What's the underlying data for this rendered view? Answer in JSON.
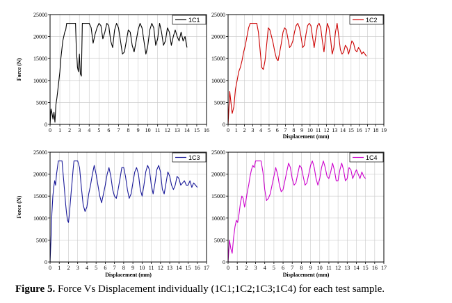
{
  "caption": {
    "label": "Figure 5.",
    "text": "Force Vs Displacement individually (1C1;1C2;1C3;1C4) for each test sample."
  },
  "chart_data": [
    {
      "type": "line",
      "title": "",
      "xlabel": "",
      "ylabel": "Force (N)",
      "xlim": [
        0,
        16
      ],
      "ylim": [
        0,
        25000
      ],
      "xticks": [
        0,
        1,
        2,
        3,
        4,
        5,
        6,
        7,
        8,
        9,
        10,
        11,
        12,
        13,
        14,
        15,
        16
      ],
      "yticks": [
        0,
        5000,
        10000,
        15000,
        20000,
        25000
      ],
      "grid": true,
      "legend": "top-right",
      "series": [
        {
          "name": "1C1",
          "color": "#000000",
          "x": [
            0,
            0.1,
            0.2,
            0.3,
            0.4,
            0.5,
            0.6,
            0.7,
            0.8,
            0.9,
            1.0,
            1.1,
            1.2,
            1.3,
            1.4,
            1.5,
            1.6,
            1.7,
            1.8,
            2.0,
            2.2,
            2.4,
            2.6,
            2.7,
            2.75,
            2.8,
            2.9,
            3.0,
            3.05,
            3.1,
            3.2,
            3.3,
            3.4,
            3.6,
            3.8,
            4.0,
            4.2,
            4.4,
            4.6,
            4.8,
            5.0,
            5.2,
            5.4,
            5.6,
            5.8,
            6.0,
            6.2,
            6.4,
            6.6,
            6.8,
            7.0,
            7.2,
            7.4,
            7.6,
            7.8,
            8.0,
            8.2,
            8.4,
            8.6,
            8.8,
            9.0,
            9.2,
            9.4,
            9.6,
            9.8,
            10.0,
            10.2,
            10.4,
            10.6,
            10.8,
            11.0,
            11.2,
            11.4,
            11.6,
            11.8,
            12.0,
            12.2,
            12.4,
            12.6,
            12.8,
            13.0,
            13.2,
            13.4,
            13.6,
            13.8,
            14.0
          ],
          "y": [
            0,
            3500,
            2500,
            1200,
            2800,
            500,
            4500,
            6000,
            8000,
            10000,
            12000,
            15000,
            17000,
            19000,
            20000,
            21000,
            21500,
            23000,
            23000,
            23000,
            23000,
            23000,
            23000,
            16000,
            15000,
            13000,
            12000,
            16000,
            13500,
            11500,
            11000,
            23000,
            23000,
            23000,
            23000,
            23000,
            22000,
            18500,
            20500,
            22000,
            23000,
            22500,
            19500,
            21000,
            23000,
            22500,
            19000,
            17500,
            21500,
            23000,
            22000,
            19000,
            16000,
            16500,
            19000,
            21500,
            21000,
            18000,
            16500,
            19000,
            21500,
            23000,
            22000,
            19000,
            16000,
            18000,
            21500,
            23000,
            22000,
            18000,
            19500,
            23000,
            21000,
            18000,
            19000,
            22000,
            21000,
            18000,
            20000,
            21500,
            20000,
            19000,
            21000,
            19000,
            20000,
            17500
          ]
        }
      ]
    },
    {
      "type": "line",
      "title": "",
      "xlabel": "Displacement (mm)",
      "ylabel": "",
      "xlim": [
        0,
        19
      ],
      "ylim": [
        0,
        25000
      ],
      "xticks": [
        0,
        1,
        2,
        3,
        4,
        5,
        6,
        7,
        8,
        9,
        10,
        11,
        12,
        13,
        14,
        15,
        16,
        17,
        18,
        19
      ],
      "yticks": [
        0,
        5000,
        10000,
        15000,
        20000,
        25000
      ],
      "grid": true,
      "legend": "top-right",
      "series": [
        {
          "name": "1C2",
          "color": "#cc0000",
          "x": [
            0,
            0.2,
            0.35,
            0.5,
            0.7,
            0.9,
            1.1,
            1.3,
            1.5,
            1.7,
            1.9,
            2.1,
            2.3,
            2.5,
            2.7,
            2.9,
            3.1,
            3.3,
            3.5,
            3.7,
            3.9,
            4.1,
            4.3,
            4.5,
            4.7,
            4.9,
            5.1,
            5.3,
            5.5,
            5.7,
            5.9,
            6.1,
            6.3,
            6.5,
            6.7,
            6.9,
            7.1,
            7.3,
            7.5,
            7.7,
            7.9,
            8.1,
            8.3,
            8.5,
            8.7,
            8.9,
            9.1,
            9.3,
            9.5,
            9.7,
            9.9,
            10.1,
            10.3,
            10.5,
            10.7,
            10.9,
            11.1,
            11.3,
            11.5,
            11.7,
            11.9,
            12.1,
            12.3,
            12.5,
            12.7,
            12.9,
            13.1,
            13.3,
            13.5,
            13.7,
            13.9,
            14.1,
            14.3,
            14.5,
            14.7,
            14.9,
            15.1,
            15.3,
            15.5,
            15.7,
            15.9,
            16.1,
            16.3,
            16.5,
            16.7,
            16.9
          ],
          "y": [
            0,
            7500,
            5000,
            2500,
            4000,
            8000,
            10000,
            12000,
            13000,
            14500,
            16500,
            18000,
            20000,
            22000,
            23000,
            23000,
            23000,
            23000,
            23000,
            21000,
            17000,
            13000,
            12500,
            14500,
            18000,
            22000,
            21500,
            20000,
            18500,
            16500,
            15000,
            14500,
            16500,
            18500,
            21000,
            22000,
            21500,
            19500,
            17500,
            18000,
            19000,
            21000,
            22500,
            23000,
            22000,
            20000,
            17500,
            18000,
            20500,
            22500,
            23000,
            22500,
            20000,
            17500,
            20000,
            22500,
            23000,
            22000,
            19000,
            16500,
            20000,
            23000,
            22000,
            19500,
            16000,
            17500,
            21000,
            23000,
            20000,
            17000,
            16000,
            16500,
            18000,
            17500,
            16000,
            17500,
            19000,
            18500,
            17000,
            16500,
            17500,
            17000,
            16000,
            16500,
            16000,
            15500
          ]
        }
      ]
    },
    {
      "type": "line",
      "title": "",
      "xlabel": "Displacement (mm)",
      "ylabel": "Force (N)",
      "xlim": [
        0,
        17
      ],
      "ylim": [
        0,
        25000
      ],
      "xticks": [
        0,
        1,
        2,
        3,
        4,
        5,
        6,
        7,
        8,
        9,
        10,
        11,
        12,
        13,
        14,
        15,
        16,
        17
      ],
      "yticks": [
        0,
        5000,
        10000,
        15000,
        20000,
        25000
      ],
      "grid": true,
      "legend": "top-right",
      "series": [
        {
          "name": "1C3",
          "color": "#1a1a99",
          "x": [
            0,
            0.1,
            0.2,
            0.3,
            0.4,
            0.5,
            0.6,
            0.7,
            0.8,
            0.9,
            1.0,
            1.1,
            1.2,
            1.3,
            1.4,
            1.5,
            1.6,
            1.7,
            1.8,
            1.9,
            2.0,
            2.1,
            2.2,
            2.3,
            2.4,
            2.5,
            2.6,
            2.7,
            2.8,
            2.9,
            3.0,
            3.2,
            3.4,
            3.6,
            3.8,
            4.0,
            4.2,
            4.4,
            4.6,
            4.8,
            5.0,
            5.2,
            5.4,
            5.6,
            5.8,
            6.0,
            6.2,
            6.4,
            6.6,
            6.8,
            7.0,
            7.2,
            7.4,
            7.6,
            7.8,
            8.0,
            8.2,
            8.4,
            8.6,
            8.8,
            9.0,
            9.2,
            9.4,
            9.6,
            9.8,
            10.0,
            10.2,
            10.4,
            10.6,
            10.8,
            11.0,
            11.2,
            11.4,
            11.6,
            11.8,
            12.0,
            12.2,
            12.4,
            12.6,
            12.8,
            13.0,
            13.2,
            13.4,
            13.6,
            13.8,
            14.0,
            14.2,
            14.4,
            14.6,
            14.8,
            15.0,
            15.2,
            15.4,
            15.6,
            15.8,
            16.0
          ],
          "y": [
            0,
            5000,
            11000,
            15000,
            17000,
            18500,
            17500,
            20000,
            21500,
            23000,
            23000,
            23000,
            23000,
            23000,
            20500,
            18000,
            15500,
            13000,
            11000,
            9500,
            9000,
            11000,
            13500,
            16000,
            18500,
            21000,
            23000,
            23000,
            23000,
            23000,
            23000,
            21500,
            17000,
            13000,
            11500,
            12500,
            15500,
            17500,
            20000,
            22000,
            20000,
            17500,
            15000,
            13500,
            15500,
            17500,
            20000,
            21500,
            19500,
            16500,
            15000,
            14500,
            16500,
            19000,
            21500,
            21500,
            19500,
            16500,
            14500,
            15500,
            18000,
            20500,
            21500,
            20000,
            16500,
            15000,
            17500,
            20500,
            22000,
            21000,
            17500,
            15500,
            18000,
            21000,
            22000,
            20500,
            16500,
            15500,
            18000,
            20500,
            19500,
            17500,
            16500,
            17500,
            19500,
            19000,
            17500,
            18000,
            18500,
            17500,
            17500,
            18500,
            17000,
            18000,
            17500,
            17000
          ]
        }
      ]
    },
    {
      "type": "line",
      "title": "",
      "xlabel": "Displacement (mm)",
      "ylabel": "",
      "xlim": [
        0,
        17
      ],
      "ylim": [
        0,
        25000
      ],
      "xticks": [
        0,
        1,
        2,
        3,
        4,
        5,
        6,
        7,
        8,
        9,
        10,
        11,
        12,
        13,
        14,
        15,
        16,
        17
      ],
      "yticks": [
        0,
        5000,
        10000,
        15000,
        20000,
        25000
      ],
      "grid": true,
      "legend": "top-right",
      "series": [
        {
          "name": "1C4",
          "color": "#cc00cc",
          "x": [
            0,
            0.15,
            0.3,
            0.45,
            0.6,
            0.75,
            0.9,
            1.05,
            1.2,
            1.35,
            1.5,
            1.65,
            1.8,
            1.95,
            2.1,
            2.25,
            2.4,
            2.55,
            2.7,
            2.85,
            3.0,
            3.2,
            3.4,
            3.6,
            3.8,
            4.0,
            4.2,
            4.4,
            4.6,
            4.8,
            5.0,
            5.2,
            5.4,
            5.6,
            5.8,
            6.0,
            6.2,
            6.4,
            6.6,
            6.8,
            7.0,
            7.2,
            7.4,
            7.6,
            7.8,
            8.0,
            8.2,
            8.4,
            8.6,
            8.8,
            9.0,
            9.2,
            9.4,
            9.6,
            9.8,
            10.0,
            10.2,
            10.4,
            10.6,
            10.8,
            11.0,
            11.2,
            11.4,
            11.6,
            11.8,
            12.0,
            12.2,
            12.4,
            12.6,
            12.8,
            13.0,
            13.2,
            13.4,
            13.6,
            13.8,
            14.0,
            14.2,
            14.4,
            14.6,
            14.8,
            15.0
          ],
          "y": [
            0,
            5000,
            3000,
            2000,
            5500,
            8000,
            9500,
            9000,
            11000,
            13500,
            15000,
            14500,
            12500,
            14000,
            16000,
            17500,
            19500,
            21000,
            22000,
            21500,
            23000,
            23000,
            23000,
            23000,
            20500,
            16500,
            14000,
            14500,
            15500,
            17500,
            19500,
            21500,
            20000,
            17500,
            16000,
            16500,
            18500,
            20500,
            22500,
            21500,
            19000,
            17500,
            18000,
            20000,
            22000,
            21500,
            19500,
            17500,
            18000,
            20000,
            22000,
            23000,
            21500,
            19000,
            17500,
            19000,
            21500,
            23000,
            21500,
            19500,
            19000,
            20500,
            22500,
            21000,
            18500,
            18500,
            21000,
            22500,
            21000,
            18500,
            19000,
            21500,
            21000,
            19000,
            20000,
            21000,
            20000,
            19000,
            20500,
            19500,
            19000
          ]
        }
      ]
    }
  ]
}
